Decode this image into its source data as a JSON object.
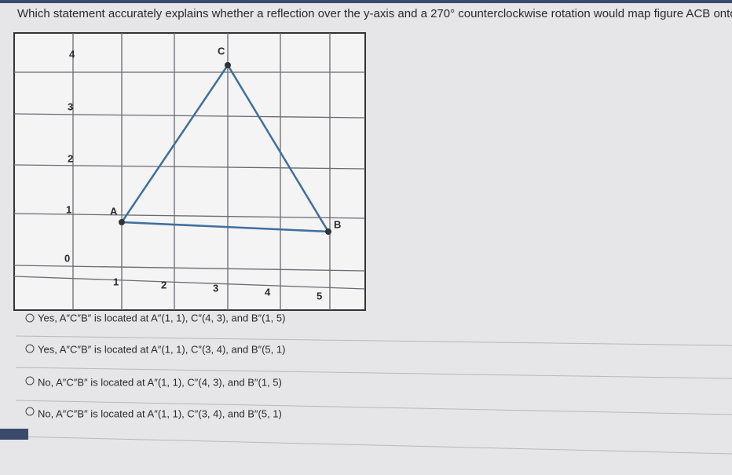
{
  "question": "Which statement accurately explains whether a reflection over the y-axis and a 270° counterclockwise rotation would map figure ACB onto itself?",
  "graph": {
    "y_labels": [
      "4",
      "3",
      "2",
      "1",
      "0"
    ],
    "x_labels": [
      "1",
      "2",
      "3",
      "4",
      "5"
    ],
    "points": [
      {
        "label": "A"
      },
      {
        "label": "B"
      },
      {
        "label": "C"
      }
    ]
  },
  "options": [
    "Yes, A″C″B″ is located at A″(1, 1), C″(4, 3), and B″(1, 5)",
    "Yes, A″C″B″ is located at A″(1, 1), C″(3, 4), and B″(5, 1)",
    "No, A″C″B″ is located at A″(1, 1), C″(4, 3), and B″(1, 5)",
    "No, A″C″B″ is located at A″(1, 1), C″(3, 4), and B″(5, 1)"
  ]
}
